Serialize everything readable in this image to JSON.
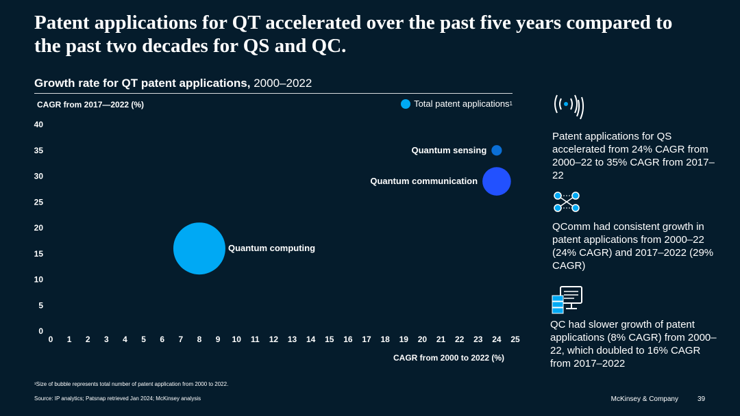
{
  "title": "Patent applications for QT accelerated over the past five years compared to the past two decades for QS and QC.",
  "subtitle": {
    "bold": "Growth rate for QT patent applications,",
    "regular": "2000–2022"
  },
  "legend": {
    "label": "Total patent applications",
    "sup": "1"
  },
  "colors": {
    "background": "#051c2c",
    "qs": "#0b6fd6",
    "qcomm": "#2251ff",
    "qc": "#00a9f4"
  },
  "chart_data": {
    "type": "scatter",
    "variant": "bubble",
    "ylabel": "CAGR from 2017—2022 (%)",
    "xlabel": "CAGR from 2000 to 2022 (%)",
    "xlim": [
      0,
      25
    ],
    "ylim": [
      0,
      40
    ],
    "xticks": [
      "0",
      "1",
      "2",
      "3",
      "4",
      "5",
      "6",
      "7",
      "8",
      "9",
      "10",
      "11",
      "12",
      "13",
      "14",
      "15",
      "16",
      "17",
      "18",
      "19",
      "20",
      "21",
      "22",
      "23",
      "24",
      "25"
    ],
    "yticks": [
      "0",
      "5",
      "10",
      "15",
      "20",
      "25",
      "30",
      "35",
      "40"
    ],
    "grid": false,
    "legend": "top-right",
    "points": [
      {
        "name": "Quantum sensing",
        "x": 24,
        "y": 35,
        "size_relative": 0.04,
        "color": "#0b6fd6"
      },
      {
        "name": "Quantum communication",
        "x": 24,
        "y": 29,
        "size_relative": 0.3,
        "color": "#2251ff"
      },
      {
        "name": "Quantum computing",
        "x": 8,
        "y": 16,
        "size_relative": 1.0,
        "color": "#00a9f4"
      }
    ]
  },
  "insights": [
    {
      "icon": "signal-waves-icon",
      "text": "Patent applications for QS accelerated from 24% CAGR from 2000–22 to 35% CAGR from 2017–22"
    },
    {
      "icon": "network-nodes-icon",
      "text": "QComm had consistent growth in patent applications from 2000–22 (24% CAGR) and 2017–2022 (29% CAGR)"
    },
    {
      "icon": "computer-server-icon",
      "text": "QC had slower growth of patent applications (8% CAGR) from 2000–22, which doubled to 16% CAGR from 2017–2022"
    }
  ],
  "footnote": "¹Size of bubble represents total number of patent application from 2000 to 2022.",
  "source": "Source: IP analytics; Patsnap retrieved Jan 2024; McKinsey analysis",
  "brand": "McKinsey & Company",
  "page_number": "39"
}
